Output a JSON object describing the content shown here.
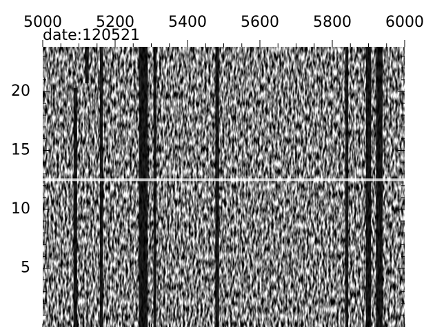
{
  "chart_data": {
    "type": "image",
    "title": "date:120521",
    "xlim": [
      5000,
      6000
    ],
    "xticks": [
      5000,
      5200,
      5400,
      5600,
      5800,
      6000
    ],
    "xminor": 50,
    "ylim": [
      0,
      23.8
    ],
    "yticks": [
      5,
      10,
      15,
      20
    ],
    "yminor": 1,
    "x_axis_position": "top",
    "colormap": "gray",
    "dark_bands": [
      {
        "x": 5090,
        "width": 10,
        "ymax": 20.3
      },
      {
        "x": 5122,
        "width": 10,
        "ymax": 23.8,
        "ymin": 20.7
      },
      {
        "x": 5162,
        "width": 8,
        "ymax": 23.8
      },
      {
        "x": 5278,
        "width": 24,
        "ymax": 23.8
      },
      {
        "x": 5310,
        "width": 8,
        "ymax": 23.8
      },
      {
        "x": 5482,
        "width": 10,
        "ymax": 23.8
      },
      {
        "x": 5840,
        "width": 8,
        "ymax": 23.8
      },
      {
        "x": 5900,
        "width": 14,
        "ymax": 23.8
      },
      {
        "x": 5930,
        "width": 18,
        "ymax": 23.8
      }
    ],
    "bright_row": 12.5
  }
}
